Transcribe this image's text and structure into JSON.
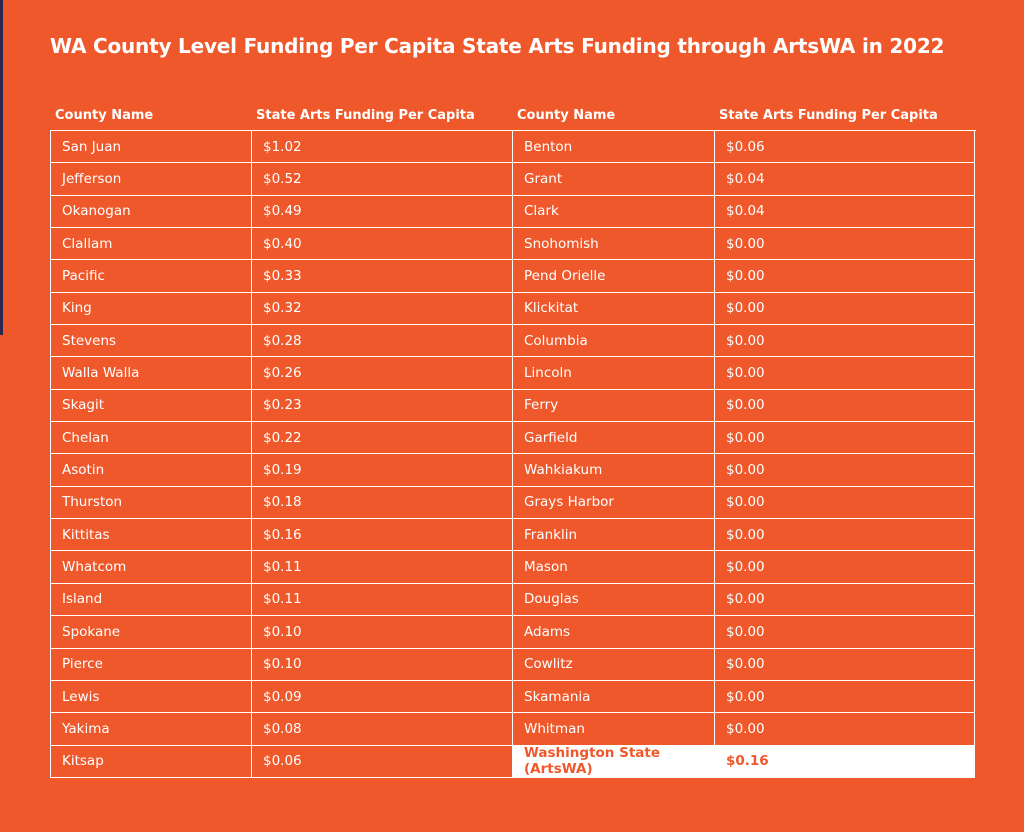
{
  "title": "WA County Level Funding Per Capita State Arts Funding through ArtsWA in 2022",
  "tables": [
    {
      "headers": [
        "County Name",
        "State Arts Funding Per Capita"
      ],
      "rows": [
        [
          "San Juan",
          "$1.02"
        ],
        [
          "Jefferson",
          "$0.52"
        ],
        [
          "Okanogan",
          "$0.49"
        ],
        [
          "Clallam",
          "$0.40"
        ],
        [
          "Pacific",
          "$0.33"
        ],
        [
          "King",
          "$0.32"
        ],
        [
          "Stevens",
          "$0.28"
        ],
        [
          "Walla Walla",
          "$0.26"
        ],
        [
          "Skagit",
          "$0.23"
        ],
        [
          "Chelan",
          "$0.22"
        ],
        [
          "Asotin",
          "$0.19"
        ],
        [
          "Thurston",
          "$0.18"
        ],
        [
          "Kittitas",
          "$0.16"
        ],
        [
          "Whatcom",
          "$0.11"
        ],
        [
          "Island",
          "$0.11"
        ],
        [
          "Spokane",
          "$0.10"
        ],
        [
          "Pierce",
          "$0.10"
        ],
        [
          "Lewis",
          "$0.09"
        ],
        [
          "Yakima",
          "$0.08"
        ],
        [
          "Kitsap",
          "$0.06"
        ]
      ]
    },
    {
      "headers": [
        "County Name",
        "State Arts Funding Per Capita"
      ],
      "rows": [
        [
          "Benton",
          "$0.06"
        ],
        [
          "Grant",
          "$0.04"
        ],
        [
          "Clark",
          "$0.04"
        ],
        [
          "Snohomish",
          "$0.00"
        ],
        [
          "Pend Orielle",
          "$0.00"
        ],
        [
          "Klickitat",
          "$0.00"
        ],
        [
          "Columbia",
          "$0.00"
        ],
        [
          "Lincoln",
          "$0.00"
        ],
        [
          "Ferry",
          "$0.00"
        ],
        [
          "Garfield",
          "$0.00"
        ],
        [
          "Wahkiakum",
          "$0.00"
        ],
        [
          "Grays Harbor",
          "$0.00"
        ],
        [
          "Franklin",
          "$0.00"
        ],
        [
          "Mason",
          "$0.00"
        ],
        [
          "Douglas",
          "$0.00"
        ],
        [
          "Adams",
          "$0.00"
        ],
        [
          "Cowlitz",
          "$0.00"
        ],
        [
          "Skamania",
          "$0.00"
        ],
        [
          "Whitman",
          "$0.00"
        ],
        [
          "Washington State (ArtsWA)",
          "$0.16"
        ]
      ]
    }
  ]
}
